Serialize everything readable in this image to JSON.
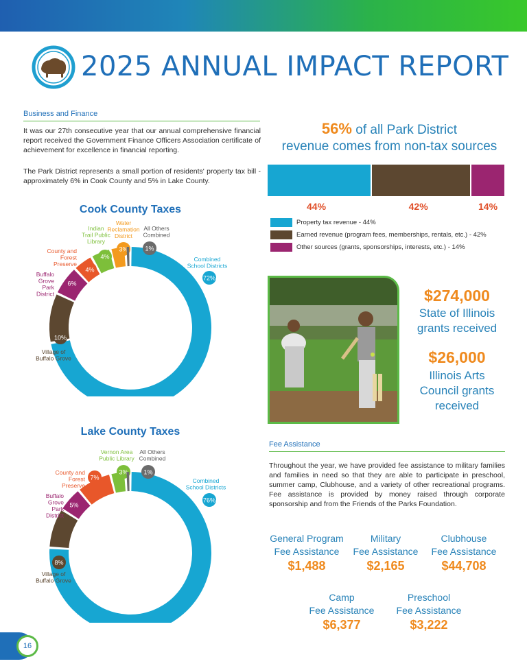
{
  "header": {
    "title": "2025 ANNUAL IMPACT REPORT"
  },
  "business": {
    "heading": "Business and Finance",
    "para1": "It was our 27th consecutive year that our annual comprehensive financial report received the Government Finance Officers Association certificate of achievement for excellence in financial reporting.",
    "para2": "The Park District represents a small portion of residents' property tax bill - approximately 6% in Cook County and 5% in Lake County."
  },
  "colors": {
    "blue": "#17a6d2",
    "brown": "#5c4730",
    "purple": "#9b2570",
    "orange": "#e8572a",
    "green": "#7dbf3a",
    "amber": "#f39a1e",
    "gray": "#6b6b6b"
  },
  "cook": {
    "title": "Cook County Taxes",
    "slices": [
      {
        "name": "Combined School Districts",
        "label_lines": [
          "Combined",
          "School Districts"
        ],
        "pct": 72,
        "display": "72%",
        "color": "#17a6d2"
      },
      {
        "name": "Village of Buffalo Grove",
        "label_lines": [
          "Village of",
          "Buffalo Grove"
        ],
        "pct": 10,
        "display": "10%",
        "color": "#5c4730"
      },
      {
        "name": "Buffalo Grove Park District",
        "label_lines": [
          "Buffalo",
          "Grove",
          "Park",
          "District"
        ],
        "pct": 6,
        "display": "6%",
        "color": "#9b2570"
      },
      {
        "name": "County and Forest Preserve",
        "label_lines": [
          "County and",
          "Forest",
          "Preserve"
        ],
        "pct": 4,
        "display": "4%",
        "color": "#e8572a"
      },
      {
        "name": "Indian Trail Public Library",
        "label_lines": [
          "Indian",
          "Trail Public",
          "Library"
        ],
        "pct": 4,
        "display": "4%",
        "color": "#7dbf3a"
      },
      {
        "name": "Water Reclamation District",
        "label_lines": [
          "Water",
          "Reclamation",
          "District"
        ],
        "pct": 3,
        "display": "3%",
        "color": "#f39a1e"
      },
      {
        "name": "All Others Combined",
        "label_lines": [
          "All Others",
          "Combined"
        ],
        "pct": 1,
        "display": "1%",
        "color": "#6b6b6b"
      }
    ]
  },
  "lake": {
    "title": "Lake County Taxes",
    "slices": [
      {
        "name": "Combined School Districts",
        "label_lines": [
          "Combined",
          "School Districts"
        ],
        "pct": 76,
        "display": "76%",
        "color": "#17a6d2"
      },
      {
        "name": "Village of Buffalo Grove",
        "label_lines": [
          "Village of",
          "Buffalo Grove"
        ],
        "pct": 8,
        "display": "8%",
        "color": "#5c4730"
      },
      {
        "name": "Buffalo Grove Park District",
        "label_lines": [
          "Buffalo",
          "Grove",
          "Park",
          "District"
        ],
        "pct": 5,
        "display": "5%",
        "color": "#9b2570"
      },
      {
        "name": "County and Forest Preserve",
        "label_lines": [
          "County and",
          "Forest",
          "Preserve"
        ],
        "pct": 7,
        "display": "7%",
        "color": "#e8572a"
      },
      {
        "name": "Vernon Area Public Library",
        "label_lines": [
          "Vernon Area",
          "Public Library"
        ],
        "pct": 3,
        "display": "3%",
        "color": "#7dbf3a"
      },
      {
        "name": "All Others Combined",
        "label_lines": [
          "All Others",
          "Combined"
        ],
        "pct": 1,
        "display": "1%",
        "color": "#6b6b6b"
      }
    ]
  },
  "revenue": {
    "pct_text": "56%",
    "line1_rest": " of all Park District",
    "line2": "revenue comes from non-tax sources",
    "segments": [
      {
        "value": 44,
        "display": "44%",
        "color": "#17a6d2",
        "legend": "Property tax revenue - 44%"
      },
      {
        "value": 42,
        "display": "42%",
        "color": "#5c4730",
        "legend": "Earned revenue (program fees, memberships, rentals, etc.) - 42%"
      },
      {
        "value": 14,
        "display": "14%",
        "color": "#9b2570",
        "legend": "Other sources (grants, sponsorships, interests, etc.) - 14%"
      }
    ]
  },
  "grants": {
    "state_amount": "$274,000",
    "state_l1": "State of Illinois",
    "state_l2": "grants received",
    "arts_amount": "$26,000",
    "arts_l1": "Illinois Arts",
    "arts_l2": "Council grants",
    "arts_l3": "received"
  },
  "fee": {
    "heading": "Fee Assistance",
    "para": "Throughout the year, we have provided fee assistance to military families and families in need so that they are able to participate in preschool, summer camp, Clubhouse, and a variety of other recreational programs. Fee assistance is provided by money raised through corporate sponsorship and from the Friends of the Parks Foundation.",
    "items": [
      {
        "l1": "General Program",
        "l2": "Fee Assistance",
        "amount": "$1,488"
      },
      {
        "l1": "Military",
        "l2": "Fee Assistance",
        "amount": "$2,165"
      },
      {
        "l1": "Clubhouse",
        "l2": "Fee Assistance",
        "amount": "$44,708"
      },
      {
        "l1": "Camp",
        "l2": "Fee Assistance",
        "amount": "$6,377"
      },
      {
        "l1": "Preschool",
        "l2": "Fee Assistance",
        "amount": "$3,222"
      }
    ]
  },
  "footer": {
    "page": "16"
  },
  "chart_data": [
    {
      "type": "pie",
      "title": "Cook County Taxes",
      "categories": [
        "Combined School Districts",
        "Village of Buffalo Grove",
        "Buffalo Grove Park District",
        "County and Forest Preserve",
        "Indian Trail Public Library",
        "Water Reclamation District",
        "All Others Combined"
      ],
      "values": [
        72,
        10,
        6,
        4,
        4,
        3,
        1
      ]
    },
    {
      "type": "pie",
      "title": "Lake County Taxes",
      "categories": [
        "Combined School Districts",
        "Village of Buffalo Grove",
        "Buffalo Grove Park District",
        "County and Forest Preserve",
        "Vernon Area Public Library",
        "All Others Combined"
      ],
      "values": [
        76,
        8,
        5,
        7,
        3,
        1
      ]
    },
    {
      "type": "bar",
      "categories": [
        "Property tax revenue",
        "Earned revenue (program fees, memberships, rentals, etc.)",
        "Other sources (grants, sponsorships, interests, etc.)"
      ],
      "values": [
        44,
        42,
        14
      ]
    }
  ]
}
